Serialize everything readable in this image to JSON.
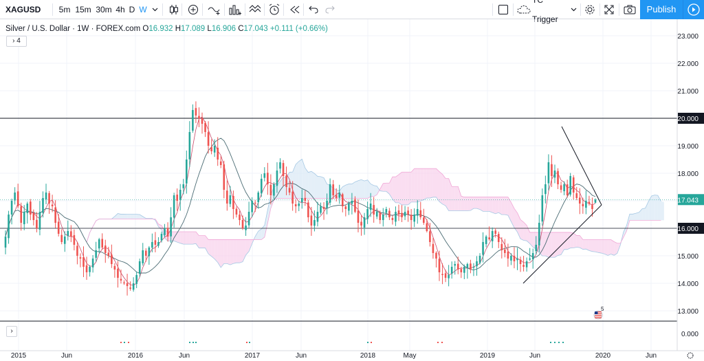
{
  "toolbar": {
    "symbol": "XAGUSD",
    "intervals": [
      "5m",
      "15m",
      "30m",
      "4h",
      "D",
      "W"
    ],
    "active_interval": "W",
    "indicator_template": "TC Trigger",
    "publish_label": "Publish",
    "accent_color": "#2196f3",
    "icons": [
      "chevron-down-icon",
      "candles-icon",
      "add-compare-icon",
      "indicators-icon",
      "financials-icon",
      "templates-icon",
      "alert-icon",
      "replay-icon",
      "undo-icon",
      "redo-icon",
      "checkbox-icon",
      "cloud-icon",
      "settings-icon",
      "fullscreen-icon",
      "camera-icon",
      "play-icon"
    ]
  },
  "legend": {
    "title": "Silver / U.S. Dollar · 1W · FOREX.com",
    "o_label": "O",
    "o": "16.932",
    "h_label": "H",
    "h": "17.089",
    "l_label": "L",
    "l": "16.906",
    "c_label": "C",
    "c": "17.043",
    "change": "+0.111 (+0.66%)",
    "collapsed_count": "4"
  },
  "price_scale": {
    "ticks": [
      "23.000",
      "22.000",
      "21.000",
      "19.000",
      "18.000",
      "15.000",
      "14.000",
      "13.000"
    ],
    "labels": [
      {
        "text": "20.000",
        "style": "dark"
      },
      {
        "text": "17.043",
        "style": "green"
      },
      {
        "text": "16.000",
        "style": "dark"
      }
    ]
  },
  "volume_scale": {
    "tick": "0.000"
  },
  "time_axis": [
    "2015",
    "Jun",
    "2016",
    "Jun",
    "2017",
    "Jun",
    "2018",
    "May",
    "2019",
    "Jun",
    "2020",
    "Jun"
  ],
  "event_badge": "5",
  "chart_data": {
    "type": "candlestick",
    "title": "Silver / U.S. Dollar · 1W · FOREX.com",
    "ylim": [
      12.5,
      23.5
    ],
    "up_color": "#26a69a",
    "down_color": "#ef5350",
    "closes": [
      15.7,
      16.5,
      17.0,
      17.3,
      16.8,
      16.2,
      16.6,
      16.9,
      16.5,
      16.3,
      16.0,
      16.6,
      17.1,
      17.3,
      16.9,
      16.8,
      16.2,
      15.8,
      15.5,
      15.7,
      15.9,
      15.7,
      15.4,
      15.0,
      14.9,
      14.6,
      14.4,
      14.6,
      14.9,
      15.2,
      15.6,
      15.3,
      15.1,
      15.0,
      14.7,
      14.5,
      14.2,
      14.1,
      14.0,
      13.9,
      13.8,
      14.0,
      14.3,
      14.8,
      15.2,
      15.0,
      15.3,
      15.5,
      15.4,
      15.5,
      15.8,
      16.0,
      15.7,
      16.4,
      17.2,
      17.0,
      17.4,
      17.6,
      18.5,
      19.5,
      20.3,
      20.1,
      20.0,
      19.8,
      19.5,
      19.0,
      18.8,
      19.0,
      18.5,
      18.3,
      17.4,
      16.9,
      17.2,
      16.7,
      16.5,
      16.3,
      16.0,
      16.1,
      16.6,
      17.0,
      16.9,
      17.3,
      17.8,
      18.0,
      17.6,
      17.2,
      17.6,
      18.1,
      18.4,
      17.9,
      17.5,
      17.3,
      16.9,
      16.8,
      16.9,
      17.1,
      17.0,
      16.4,
      16.1,
      16.3,
      16.6,
      16.8,
      16.7,
      17.0,
      17.6,
      17.2,
      17.1,
      17.3,
      16.8,
      16.7,
      16.9,
      17.0,
      16.6,
      16.2,
      16.1,
      16.4,
      16.7,
      16.9,
      16.5,
      16.6,
      16.3,
      16.5,
      16.7,
      16.4,
      16.3,
      16.6,
      16.5,
      16.4,
      16.6,
      16.5,
      16.3,
      16.5,
      16.7,
      16.4,
      16.2,
      15.9,
      15.5,
      15.1,
      14.9,
      14.4,
      14.3,
      14.2,
      14.3,
      14.6,
      14.7,
      14.5,
      14.4,
      14.6,
      14.7,
      14.5,
      14.6,
      14.8,
      15.0,
      15.5,
      15.7,
      15.6,
      15.9,
      15.8,
      15.5,
      15.2,
      15.1,
      14.9,
      15.0,
      14.8,
      14.9,
      14.7,
      14.6,
      14.8,
      14.9,
      15.1,
      15.4,
      16.2,
      17.2,
      17.6,
      18.4,
      17.9,
      18.1,
      17.6,
      17.4,
      17.6,
      17.2,
      17.9,
      17.3,
      17.1,
      16.9,
      16.8,
      17.0,
      16.9,
      16.7,
      17.04
    ]
  }
}
